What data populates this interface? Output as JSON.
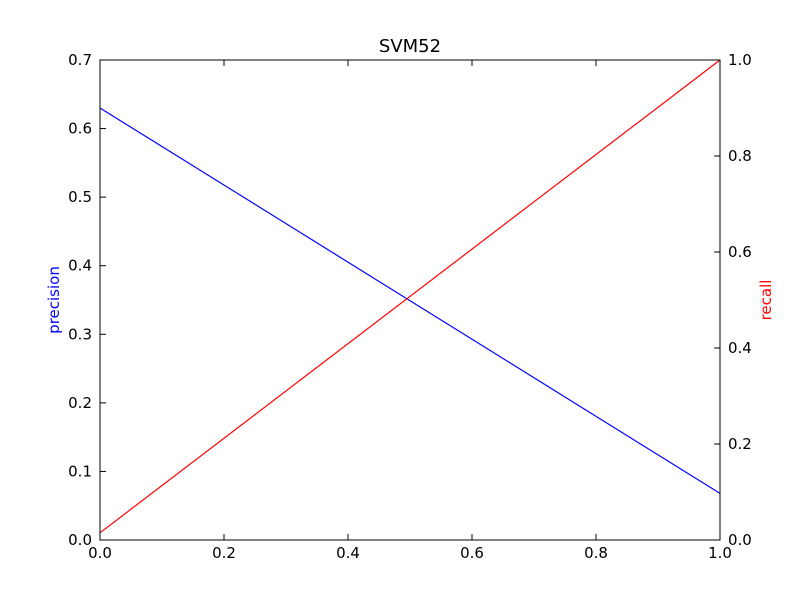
{
  "chart_data": {
    "type": "line",
    "title": "SVM52",
    "xlabel": "",
    "x": [
      0.0,
      1.0
    ],
    "xlim": [
      0.0,
      1.0
    ],
    "xticks": [
      "0.0",
      "0.2",
      "0.4",
      "0.6",
      "0.8",
      "1.0"
    ],
    "y_left": {
      "label": "precision",
      "color": "#0000ff",
      "lim": [
        0.0,
        0.7
      ],
      "ticks": [
        "0.0",
        "0.1",
        "0.2",
        "0.3",
        "0.4",
        "0.5",
        "0.6",
        "0.7"
      ]
    },
    "y_right": {
      "label": "recall",
      "color": "#ff0000",
      "lim": [
        0.0,
        1.0
      ],
      "ticks": [
        "0.0",
        "0.2",
        "0.4",
        "0.6",
        "0.8",
        "1.0"
      ]
    },
    "series": [
      {
        "axis": "left",
        "color": "#0000ff",
        "x": [
          0.0,
          1.0
        ],
        "y": [
          0.63,
          0.068
        ]
      },
      {
        "axis": "right",
        "color": "#ff0000",
        "x": [
          0.0,
          1.0
        ],
        "y": [
          0.015,
          1.0
        ]
      }
    ],
    "grid": false,
    "legend": "none"
  }
}
